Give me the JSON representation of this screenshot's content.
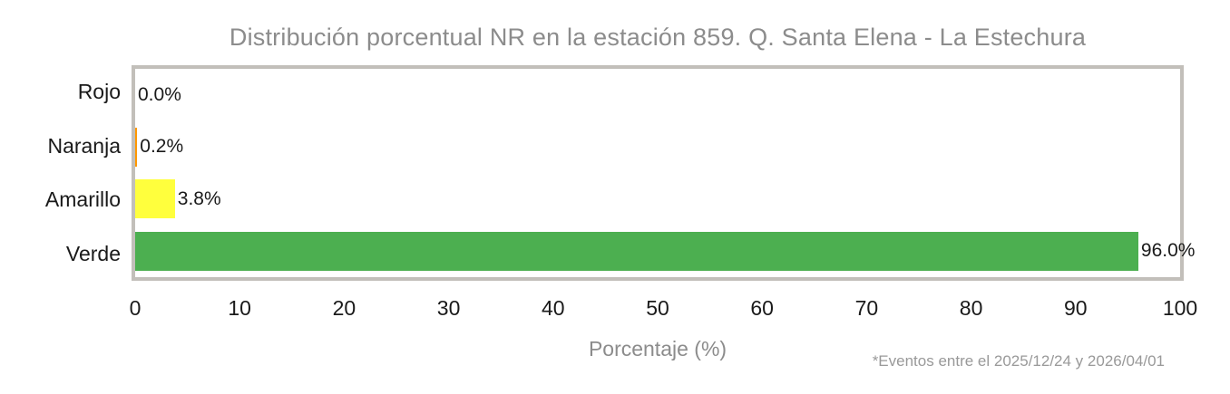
{
  "chart_data": {
    "type": "bar",
    "orientation": "horizontal",
    "title": "Distribución porcentual NR en la estación 859. Q. Santa Elena - La Estechura",
    "categories": [
      "Rojo",
      "Naranja",
      "Amarillo",
      "Verde"
    ],
    "values": [
      0.0,
      0.2,
      3.8,
      96.0
    ],
    "value_labels": [
      "0.0%",
      "0.2%",
      "3.8%",
      "96.0%"
    ],
    "bar_colors": [
      "#e53935",
      "#ff9800",
      "#ffff3d",
      "#4caf50"
    ],
    "xlabel": "Porcentaje (%)",
    "xlim": [
      0,
      100
    ],
    "xticks": [
      0,
      10,
      20,
      30,
      40,
      50,
      60,
      70,
      80,
      90,
      100
    ],
    "grid": false,
    "legend_position": "none",
    "footnote": "*Eventos entre el 2025/12/24 y 2026/04/01"
  },
  "style_colors": {
    "title_text": "#8c8c8c",
    "axis_label_text": "#8c8c8c",
    "footnote_text": "#999999",
    "plot_border": "#c2bfba",
    "tick_text": "#1a1a1a",
    "category_text": "#1a1a1a",
    "value_text": "#1a1a1a"
  }
}
